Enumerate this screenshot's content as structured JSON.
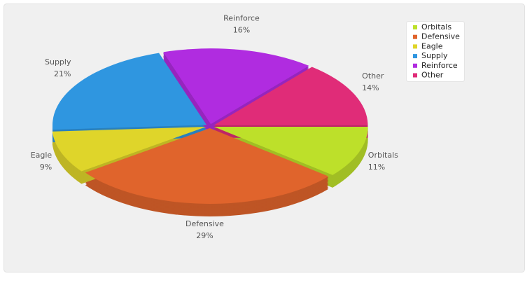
{
  "chart_data": {
    "type": "pie3d",
    "categories": [
      "Orbitals",
      "Defensive",
      "Eagle",
      "Supply",
      "Reinforce",
      "Other"
    ],
    "values": [
      11,
      29,
      9,
      21,
      16,
      14
    ],
    "value_labels": [
      "11%",
      "29%",
      "9%",
      "21%",
      "16%",
      "14%"
    ],
    "colors": [
      "#bde02a",
      "#e0642c",
      "#dfd52a",
      "#2f96e0",
      "#b02ce0",
      "#e02c78"
    ],
    "legend": "top-right"
  }
}
